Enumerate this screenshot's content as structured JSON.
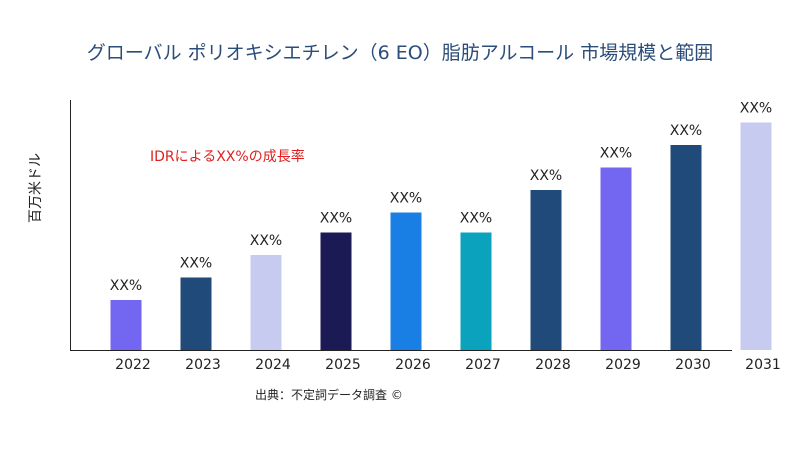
{
  "chart_data": {
    "type": "bar",
    "title": "グローバル ポリオキシエチレン（6 EO）脂肪アルコール 市場規模と範囲",
    "ylabel": "百万米ドル",
    "xlabel": "",
    "categories": [
      "2022",
      "2023",
      "2024",
      "2025",
      "2026",
      "2027",
      "2028",
      "2029",
      "2030",
      "2031"
    ],
    "values": [
      20,
      29,
      38,
      47,
      55,
      47,
      64,
      73,
      82,
      91
    ],
    "data_labels": [
      "XX%",
      "XX%",
      "XX%",
      "XX%",
      "XX%",
      "XX%",
      "XX%",
      "XX%",
      "XX%",
      "XX%"
    ],
    "bar_colors": [
      "#7366f0",
      "#1f4a7a",
      "#c8cbf0",
      "#1c1a55",
      "#1a7fe5",
      "#0aa2bd",
      "#1f4a7a",
      "#7366f0",
      "#1f4a7a",
      "#c8cbf0"
    ],
    "ylim": [
      0,
      100
    ],
    "grid": false,
    "annotation": "IDRによるXX%の成長率",
    "annotation_color": "#e02020"
  },
  "source": "出典：不定詞データ調査 ©"
}
